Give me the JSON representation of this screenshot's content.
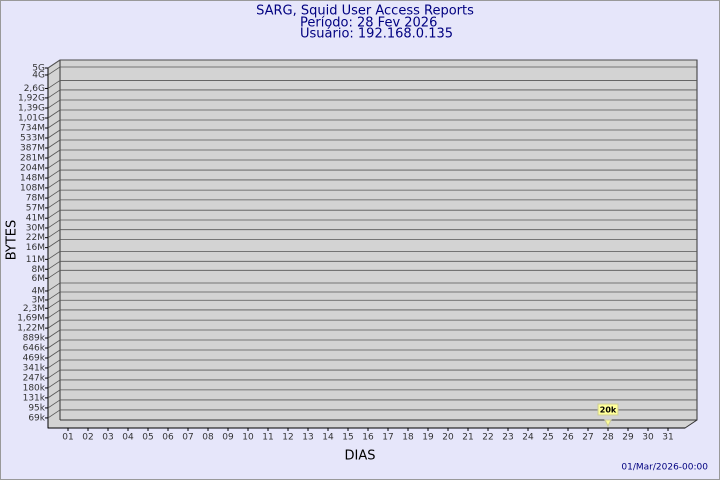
{
  "chart_data": {
    "type": "bar",
    "title": "SARG, Squid User Access Reports",
    "subtitle": "Período: 28 Fev 2026",
    "user": "Usuário: 192.168.0.135",
    "y_label": "BYTES",
    "x_label": "DIAS",
    "timestamp": "01/Mar/2026-00:00",
    "categories": [
      "01",
      "02",
      "03",
      "04",
      "05",
      "06",
      "07",
      "08",
      "09",
      "10",
      "11",
      "12",
      "13",
      "14",
      "15",
      "16",
      "17",
      "18",
      "19",
      "20",
      "21",
      "22",
      "23",
      "24",
      "25",
      "26",
      "27",
      "28",
      "29",
      "30",
      "31"
    ],
    "values": [
      null,
      null,
      null,
      null,
      null,
      null,
      null,
      null,
      null,
      null,
      null,
      null,
      null,
      null,
      null,
      null,
      null,
      null,
      null,
      null,
      null,
      null,
      null,
      null,
      null,
      null,
      null,
      20000,
      null,
      null,
      null
    ],
    "value_labels": [
      null,
      null,
      null,
      null,
      null,
      null,
      null,
      null,
      null,
      null,
      null,
      null,
      null,
      null,
      null,
      null,
      null,
      null,
      null,
      null,
      null,
      null,
      null,
      null,
      null,
      null,
      null,
      "20k",
      null,
      null,
      null
    ],
    "color": "#ffff99",
    "log_scale": true,
    "grid": true,
    "ylim": [
      50000,
      5000000000
    ],
    "yticks": [
      {
        "value": 69000,
        "label": "69k"
      },
      {
        "value": 95000,
        "label": "95k"
      },
      {
        "value": 131000,
        "label": "131k"
      },
      {
        "value": 180000,
        "label": "180k"
      },
      {
        "value": 247000,
        "label": "247k"
      },
      {
        "value": 341000,
        "label": "341k"
      },
      {
        "value": 469000,
        "label": "469k"
      },
      {
        "value": 646000,
        "label": "646k"
      },
      {
        "value": 889000,
        "label": "889k"
      },
      {
        "value": 1220000,
        "label": "1,22M"
      },
      {
        "value": 1690000,
        "label": "1,69M"
      },
      {
        "value": 2300000,
        "label": "2,3M"
      },
      {
        "value": 3000000,
        "label": "3M"
      },
      {
        "value": 4000000,
        "label": "4M"
      },
      {
        "value": 6000000,
        "label": "6M"
      },
      {
        "value": 8000000,
        "label": "8M"
      },
      {
        "value": 11000000,
        "label": "11M"
      },
      {
        "value": 16000000,
        "label": "16M"
      },
      {
        "value": 22000000,
        "label": "22M"
      },
      {
        "value": 30000000,
        "label": "30M"
      },
      {
        "value": 41000000,
        "label": "41M"
      },
      {
        "value": 57000000,
        "label": "57M"
      },
      {
        "value": 78000000,
        "label": "78M"
      },
      {
        "value": 108000000,
        "label": "108M"
      },
      {
        "value": 148000000,
        "label": "148M"
      },
      {
        "value": 204000000,
        "label": "204M"
      },
      {
        "value": 281000000,
        "label": "281M"
      },
      {
        "value": 387000000,
        "label": "387M"
      },
      {
        "value": 533000000,
        "label": "533M"
      },
      {
        "value": 734000000,
        "label": "734M"
      },
      {
        "value": 1010000000,
        "label": "1,01G"
      },
      {
        "value": 1390000000,
        "label": "1,39G"
      },
      {
        "value": 1920000000,
        "label": "1,92G"
      },
      {
        "value": 2600000000,
        "label": "2,6G"
      },
      {
        "value": 4000000000,
        "label": "4G"
      },
      {
        "value": 5000000000,
        "label": "5G"
      }
    ]
  }
}
